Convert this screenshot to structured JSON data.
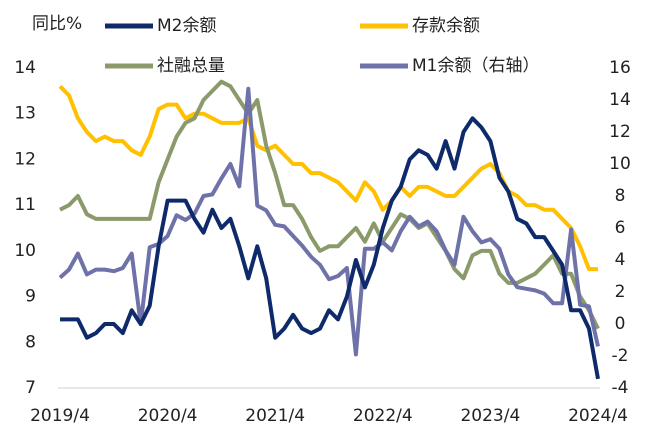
{
  "chart_data": {
    "type": "line",
    "y_label": "同比%",
    "categories": [
      "2019/4",
      null,
      null,
      null,
      null,
      null,
      null,
      null,
      null,
      null,
      null,
      null,
      "2020/4",
      null,
      null,
      null,
      null,
      null,
      null,
      null,
      null,
      null,
      null,
      null,
      "2021/4",
      null,
      null,
      null,
      null,
      null,
      null,
      null,
      null,
      null,
      null,
      null,
      "2022/4",
      null,
      null,
      null,
      null,
      null,
      null,
      null,
      null,
      null,
      null,
      null,
      "2023/4",
      null,
      null,
      null,
      null,
      null,
      null,
      null,
      null,
      null,
      null,
      null,
      "2024/4"
    ],
    "ylim": [
      7,
      14
    ],
    "yticks": [
      7,
      8,
      9,
      10,
      11,
      12,
      13,
      14
    ],
    "y2lim": [
      -4,
      16
    ],
    "y2ticks": [
      -4,
      -2,
      0,
      2,
      4,
      6,
      8,
      10,
      12,
      14,
      16
    ],
    "series": [
      {
        "name": "M2余额",
        "color": "#0e2a6b",
        "values": [
          8.5,
          8.5,
          8.5,
          8.1,
          8.2,
          8.4,
          8.4,
          8.2,
          8.7,
          8.4,
          8.8,
          10.1,
          11.1,
          11.1,
          11.1,
          10.7,
          10.4,
          10.9,
          10.5,
          10.7,
          10.1,
          9.4,
          10.1,
          9.4,
          8.1,
          8.3,
          8.6,
          8.3,
          8.2,
          8.3,
          8.7,
          8.5,
          9.0,
          9.8,
          9.2,
          9.7,
          10.5,
          11.1,
          11.4,
          12.0,
          12.2,
          12.1,
          11.8,
          12.4,
          11.8,
          12.6,
          12.9,
          12.7,
          12.4,
          11.6,
          11.3,
          10.7,
          10.6,
          10.3,
          10.3,
          10.0,
          9.7,
          8.7,
          8.7,
          8.3,
          7.2
        ]
      },
      {
        "name": "存款余额",
        "color": "#ffc000",
        "values": [
          13.6,
          13.4,
          12.9,
          12.6,
          12.4,
          12.5,
          12.4,
          12.4,
          12.2,
          12.1,
          12.5,
          13.1,
          13.2,
          13.2,
          12.9,
          13.0,
          13.0,
          12.9,
          12.8,
          12.8,
          12.8,
          12.9,
          12.3,
          12.2,
          12.3,
          12.1,
          11.9,
          11.9,
          11.7,
          11.7,
          11.6,
          11.5,
          11.3,
          11.1,
          11.5,
          11.3,
          10.9,
          11.1,
          11.4,
          11.2,
          11.4,
          11.4,
          11.3,
          11.2,
          11.2,
          11.4,
          11.6,
          11.8,
          11.9,
          11.7,
          11.3,
          11.2,
          11.0,
          11.0,
          10.9,
          10.9,
          10.7,
          10.5,
          10.1,
          9.6,
          9.6
        ]
      },
      {
        "name": "社融总量",
        "color": "#8b9a6b",
        "values": [
          10.9,
          11.0,
          11.2,
          10.8,
          10.7,
          10.7,
          10.7,
          10.7,
          10.7,
          10.7,
          10.7,
          11.5,
          12.0,
          12.5,
          12.8,
          12.9,
          13.3,
          13.5,
          13.7,
          13.6,
          13.3,
          13.0,
          13.3,
          12.3,
          11.7,
          11.0,
          11.0,
          10.7,
          10.3,
          10.0,
          10.1,
          10.1,
          10.3,
          10.5,
          10.2,
          10.6,
          10.2,
          10.5,
          10.8,
          10.7,
          10.5,
          10.6,
          10.3,
          10.0,
          9.6,
          9.4,
          9.9,
          10.0,
          10.0,
          9.5,
          9.3,
          9.3,
          9.4,
          9.5,
          9.7,
          9.9,
          9.5,
          9.5,
          9.0,
          8.7,
          8.3
        ]
      },
      {
        "name": "M1余额（右轴）",
        "color": "#6f72a8",
        "axis": "y2",
        "values": [
          2.9,
          3.4,
          4.4,
          3.1,
          3.4,
          3.4,
          3.3,
          3.5,
          4.4,
          0.0,
          4.8,
          5.0,
          5.5,
          6.8,
          6.5,
          6.9,
          8.0,
          8.1,
          9.1,
          10.0,
          8.6,
          14.7,
          7.4,
          7.1,
          6.2,
          6.1,
          5.5,
          4.9,
          4.2,
          3.7,
          2.8,
          3.0,
          3.5,
          -1.9,
          4.7,
          4.7,
          5.1,
          4.6,
          5.8,
          6.7,
          6.1,
          6.4,
          5.8,
          4.6,
          3.7,
          6.7,
          5.8,
          5.1,
          5.3,
          4.7,
          3.1,
          2.3,
          2.2,
          2.1,
          1.9,
          1.3,
          1.3,
          5.9,
          1.2,
          1.1,
          -1.4
        ]
      }
    ]
  }
}
